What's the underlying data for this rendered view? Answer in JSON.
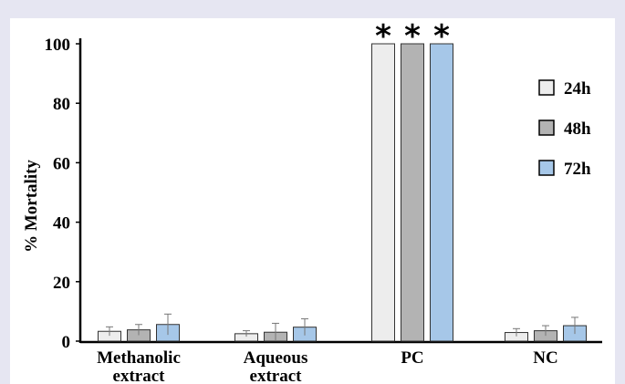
{
  "chart_data": {
    "type": "bar",
    "ylabel": "% Mortality",
    "ylim": [
      0,
      100
    ],
    "yticks": [
      0,
      20,
      40,
      60,
      80,
      100
    ],
    "categories": [
      [
        "Methanolic",
        "extract"
      ],
      [
        "Aqueous",
        "extract"
      ],
      [
        "PC"
      ],
      [
        "NC"
      ]
    ],
    "series": [
      {
        "name": "24h",
        "color": "#ededed",
        "values": [
          3.3,
          2.5,
          100,
          2.9
        ],
        "errors": [
          1.5,
          1.0,
          0,
          1.3
        ]
      },
      {
        "name": "48h",
        "color": "#b3b3b3",
        "values": [
          3.8,
          3.0,
          100,
          3.5
        ],
        "errors": [
          1.8,
          3.0,
          0,
          1.7
        ]
      },
      {
        "name": "72h",
        "color": "#a6c7e8",
        "values": [
          5.6,
          4.7,
          100,
          5.2
        ],
        "errors": [
          3.5,
          2.8,
          0,
          2.8
        ]
      }
    ],
    "annotations": [
      {
        "category": 2,
        "series": 0,
        "text": "*"
      },
      {
        "category": 2,
        "series": 1,
        "text": "*"
      },
      {
        "category": 2,
        "series": 2,
        "text": "*"
      }
    ],
    "legend": {
      "placement": "top-right"
    },
    "grid": false
  }
}
